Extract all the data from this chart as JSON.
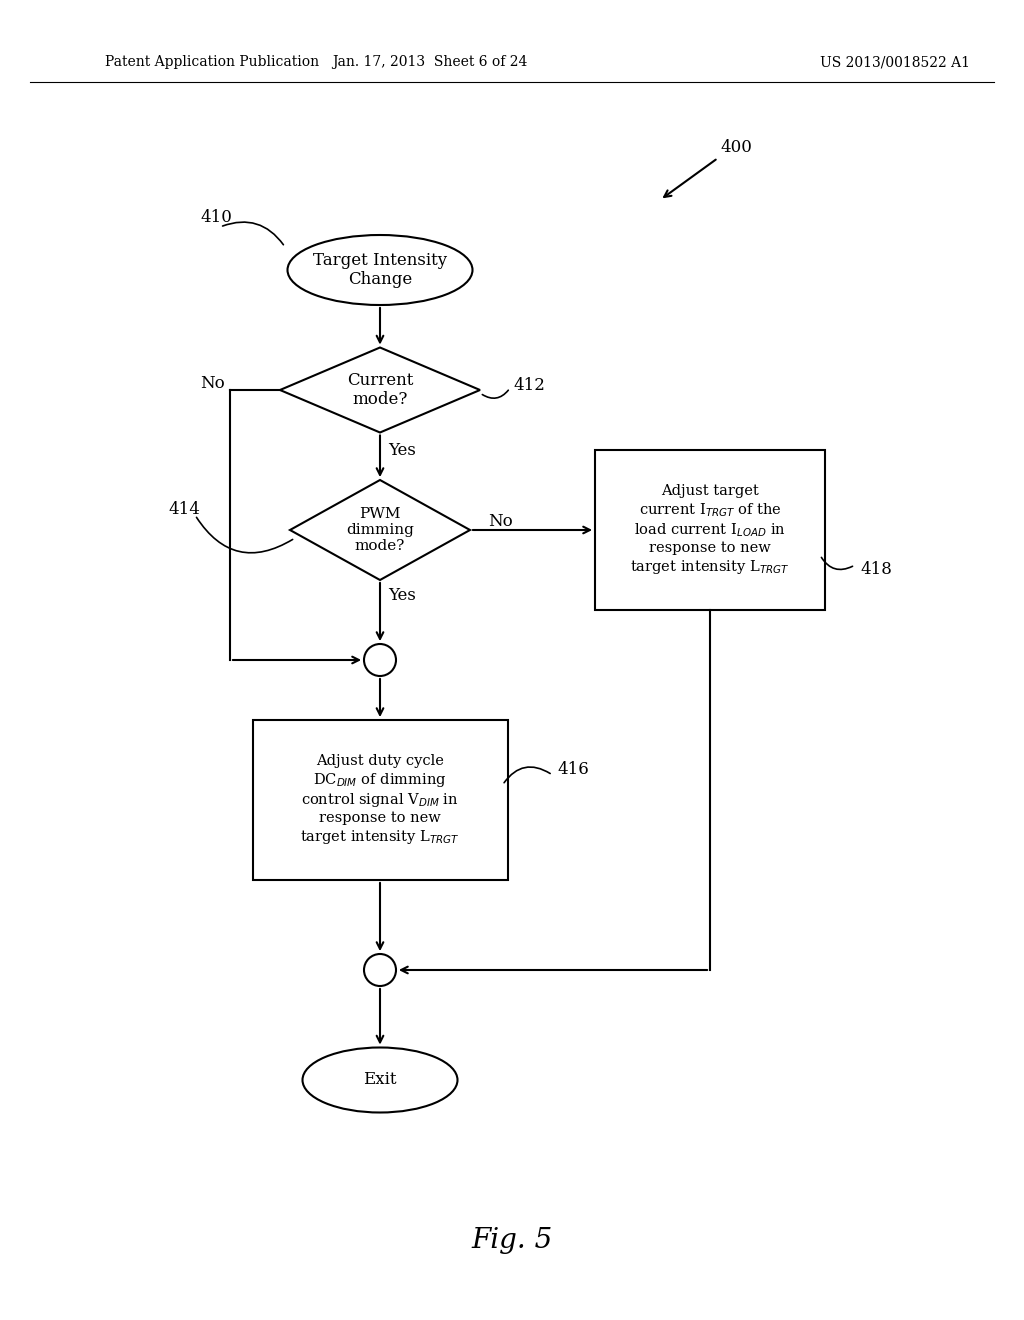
{
  "background_color": "#ffffff",
  "header_left": "Patent Application Publication",
  "header_mid": "Jan. 17, 2013  Sheet 6 of 24",
  "header_right": "US 2013/0018522 A1",
  "fig_label": "Fig. 5"
}
